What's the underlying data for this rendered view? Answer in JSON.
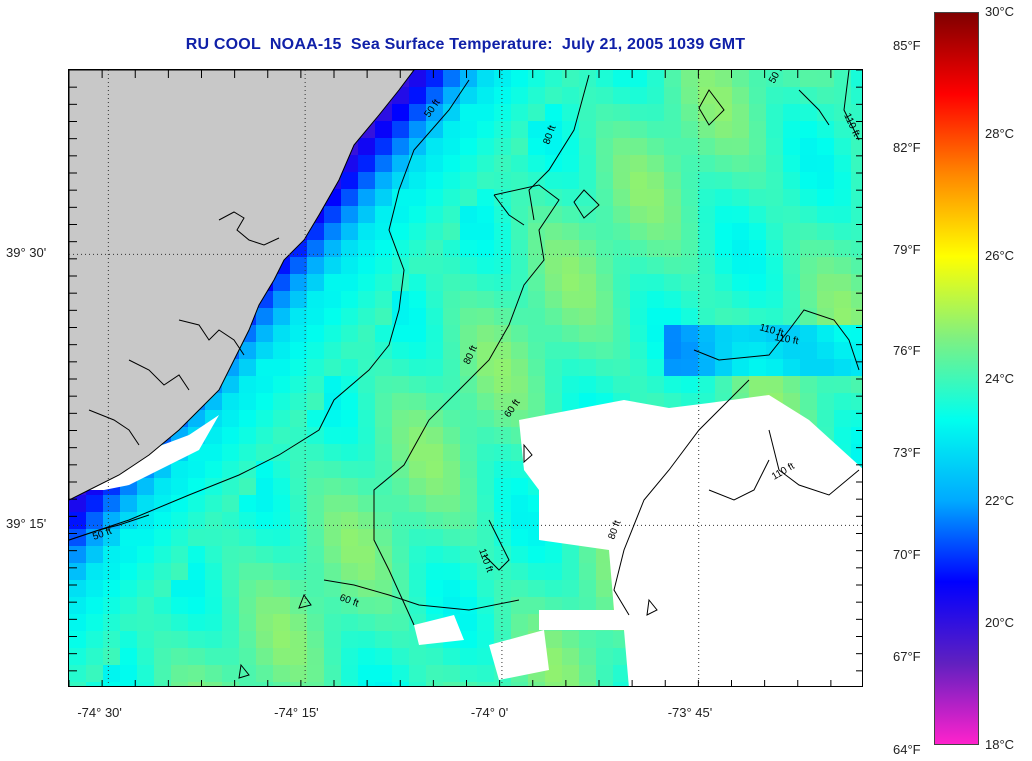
{
  "title": "RU COOL  NOAA-15  Sea Surface Temperature:  July 21, 2005 1039 GMT",
  "map": {
    "lon_range": [
      -74.55,
      -73.54
    ],
    "lat_range": [
      39.1,
      39.67
    ],
    "lon_labels": [
      {
        "lon": -74.5,
        "text": "-74° 30'"
      },
      {
        "lon": -74.25,
        "text": "-74° 15'"
      },
      {
        "lon": -74.0,
        "text": "-74° 0'"
      },
      {
        "lon": -73.75,
        "text": "-73° 45'"
      }
    ],
    "lat_labels": [
      {
        "lat": 39.5,
        "text": "39° 30'"
      },
      {
        "lat": 39.25,
        "text": "39° 15'"
      }
    ],
    "grid": "dotted",
    "land_color": "#c8c8c8",
    "no_data_color": "#ffffff",
    "contour_labels": [
      "50 ft",
      "80 ft",
      "80 ft",
      "110 ft",
      "80 ft",
      "50 ft",
      "60 ft",
      "110 ft",
      "110 ft",
      "60 ft",
      "110 ft",
      "110 ft",
      "50 ft"
    ]
  },
  "colorbar": {
    "celsius_range": [
      18,
      30
    ],
    "celsius_labels": [
      "30°C",
      "28°C",
      "26°C",
      "24°C",
      "22°C",
      "20°C",
      "18°C"
    ],
    "celsius_values": [
      30,
      28,
      26,
      24,
      22,
      20,
      18
    ],
    "fahrenheit_labels": [
      "85°F",
      "82°F",
      "79°F",
      "76°F",
      "73°F",
      "70°F",
      "67°F",
      "64°F"
    ],
    "fahrenheit_values": [
      85,
      82,
      79,
      76,
      73,
      70,
      67,
      64
    ],
    "stops": [
      "#ff22cc",
      "#6020c0",
      "#0000ff",
      "#00aaff",
      "#00ffee",
      "#80f080",
      "#ffff00",
      "#ff8800",
      "#ff0000",
      "#800000"
    ]
  }
}
